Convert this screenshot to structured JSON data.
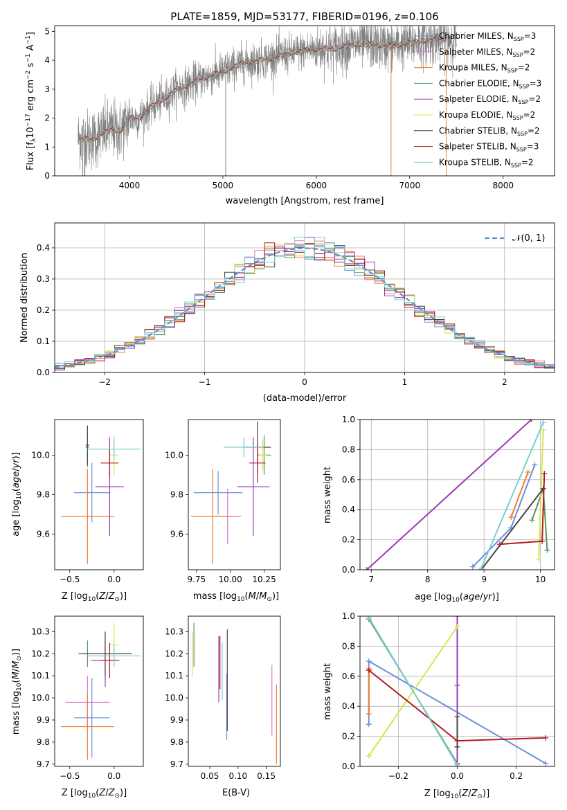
{
  "figure": {
    "title": "PLATE=1859, MJD=53177, FIBERID=0196, z=0.106"
  },
  "series_styles": [
    {
      "label": "Chabrier MILES, N$_{SSP}$=3",
      "label_main": "Chabrier MILES, N",
      "label_sub": "SSP",
      "label_tail": "=3",
      "color": "#6a8fdc"
    },
    {
      "label": "Salpeter MILES, N$_{SSP}$=2",
      "label_main": "Salpeter MILES, N",
      "label_sub": "SSP",
      "label_tail": "=2",
      "color": "#e276c7"
    },
    {
      "label": "Kroupa MILES, N$_{SSP}$=2",
      "label_main": "Kroupa MILES, N",
      "label_sub": "SSP",
      "label_tail": "=2",
      "color": "#f07e2a"
    },
    {
      "label": "Chabrier ELODIE, N$_{SSP}$=3",
      "label_main": "Chabrier ELODIE, N",
      "label_sub": "SSP",
      "label_tail": "=3",
      "color": "#5e8f5e"
    },
    {
      "label": "Salpeter ELODIE, N$_{SSP}$=2",
      "label_main": "Salpeter ELODIE, N",
      "label_sub": "SSP",
      "label_tail": "=2",
      "color": "#9b39b5"
    },
    {
      "label": "Kroupa ELODIE, N$_{SSP}$=2",
      "label_main": "Kroupa ELODIE, N",
      "label_sub": "SSP",
      "label_tail": "=2",
      "color": "#d7e64a"
    },
    {
      "label": "Chabrier STELIB, N$_{SSP}$=2",
      "label_main": "Chabrier STELIB, N",
      "label_sub": "SSP",
      "label_tail": "=2",
      "color": "#444444"
    },
    {
      "label": "Salpeter STELIB, N$_{SSP}$=3",
      "label_main": "Salpeter STELIB, N",
      "label_sub": "SSP",
      "label_tail": "=3",
      "color": "#b01c1c"
    },
    {
      "label": "Kroupa STELIB, N$_{SSP}$=2",
      "label_main": "Kroupa STELIB, N",
      "label_sub": "SSP",
      "label_tail": "=2",
      "color": "#78cfcf"
    }
  ],
  "chart_data": [
    {
      "id": "spectrum",
      "type": "line",
      "xlabel": "wavelength [Angstrom, rest frame]",
      "ylabel": "Flux [f$_\\lambda$10$^{-17}$ erg cm$^{-2}$ s$^{-1}$ A$^{-1}$]",
      "xlim": [
        3200,
        8550
      ],
      "ylim": [
        0,
        5.2
      ],
      "xticks": [
        4000,
        5000,
        6000,
        7000,
        8000
      ],
      "yticks": [
        0,
        1,
        2,
        3,
        4,
        5
      ],
      "legend_position": "top-right",
      "data_color": "#808080",
      "model_trend": {
        "x": [
          3450,
          3600,
          3700,
          3800,
          3900,
          4000,
          4100,
          4200,
          4300,
          4400,
          4500,
          4600,
          4800,
          5000,
          5200,
          5400,
          5600,
          5800,
          6000,
          6200,
          6400,
          6600,
          6800,
          7000,
          7200,
          7400
        ],
        "y": [
          1.3,
          1.25,
          1.45,
          1.6,
          1.55,
          2.0,
          2.0,
          2.3,
          2.55,
          2.7,
          3.0,
          3.1,
          3.4,
          3.6,
          3.9,
          4.0,
          4.15,
          4.3,
          4.4,
          4.4,
          4.55,
          4.55,
          4.5,
          4.6,
          4.7,
          4.75
        ]
      },
      "data_scatter_sigma": 0.55,
      "data_xrange": [
        3450,
        7500
      ]
    },
    {
      "id": "residual_histogram",
      "type": "step",
      "xlabel": "(data-model)/error",
      "ylabel": "Normed distribution",
      "xlim": [
        -2.5,
        2.5
      ],
      "ylim": [
        0,
        0.48
      ],
      "xticks": [
        -2,
        -1,
        0,
        1,
        2
      ],
      "yticks": [
        0.0,
        0.1,
        0.2,
        0.3,
        0.4
      ],
      "grid": true,
      "reference_curve": {
        "label": "$\\mathcal{N}(0,1)$",
        "label_text": "𝒩(0, 1)",
        "color": "#5b8fd6",
        "style": "dashed"
      },
      "bin_width": 0.1,
      "legend_position": "top-right"
    },
    {
      "id": "age_vs_Z",
      "type": "errorbar",
      "xlabel": "Z [log$_{10}$(Z/Z$_\\odot$)]",
      "ylabel": "age  [log$_{10}$(age/yr)]",
      "xlim": [
        -0.67,
        0.33
      ],
      "ylim": [
        9.42,
        10.18
      ],
      "xticks": [
        -0.5,
        0.0
      ],
      "yticks": [
        9.6,
        9.8,
        10.0
      ],
      "points": [
        {
          "series": 0,
          "x": -0.25,
          "y": 9.81,
          "xerr": 0.2,
          "yerr": 0.15
        },
        {
          "series": 2,
          "x": -0.3,
          "y": 9.69,
          "xerr": 0.3,
          "yerr": 0.24
        },
        {
          "series": 3,
          "x": -0.3,
          "y": 10.04,
          "xerr": 0.02,
          "yerr": 0.1
        },
        {
          "series": 4,
          "x": -0.05,
          "y": 9.84,
          "xerr": 0.16,
          "yerr": 0.25
        },
        {
          "series": 5,
          "x": 0.0,
          "y": 10.0,
          "xerr": 0.05,
          "yerr": 0.1
        },
        {
          "series": 6,
          "x": -0.3,
          "y": 10.05,
          "xerr": 0.02,
          "yerr": 0.1
        },
        {
          "series": 7,
          "x": -0.05,
          "y": 9.96,
          "xerr": 0.1,
          "yerr": 0.07
        },
        {
          "series": 8,
          "x": 0.0,
          "y": 10.03,
          "xerr": 0.3,
          "yerr": 0.05
        }
      ]
    },
    {
      "id": "age_vs_mass",
      "type": "errorbar",
      "xlabel": "mass [log$_{10}$(M/M$_\\odot$)]",
      "ylabel": "",
      "xlim": [
        9.69,
        10.37
      ],
      "ylim": [
        9.42,
        10.18
      ],
      "xticks": [
        9.75,
        10.0,
        10.25
      ],
      "yticks": [
        9.6,
        9.8,
        10.0
      ],
      "points": [
        {
          "series": 0,
          "x": 9.91,
          "y": 9.81,
          "xerr": 0.18,
          "yerr": 0.11
        },
        {
          "series": 1,
          "x": 9.98,
          "y": 9.69,
          "xerr": 0.1,
          "yerr": 0.14
        },
        {
          "series": 2,
          "x": 9.87,
          "y": 9.69,
          "xerr": 0.16,
          "yerr": 0.24
        },
        {
          "series": 3,
          "x": 10.25,
          "y": 10.0,
          "xerr": 0.05,
          "yerr": 0.1
        },
        {
          "series": 4,
          "x": 10.17,
          "y": 9.84,
          "xerr": 0.12,
          "yerr": 0.25
        },
        {
          "series": 5,
          "x": 10.24,
          "y": 10.0,
          "xerr": 0.03,
          "yerr": 0.08
        },
        {
          "series": 6,
          "x": 10.2,
          "y": 10.04,
          "xerr": 0.1,
          "yerr": 0.13
        },
        {
          "series": 7,
          "x": 10.2,
          "y": 9.96,
          "xerr": 0.06,
          "yerr": 0.1
        },
        {
          "series": 8,
          "x": 10.1,
          "y": 10.04,
          "xerr": 0.15,
          "yerr": 0.05
        }
      ]
    },
    {
      "id": "mass_weight_vs_age",
      "type": "line",
      "xlabel": "age  [log$_{10}$(age/yr)]",
      "ylabel": "mass weight",
      "xlim": [
        6.8,
        10.25
      ],
      "ylim": [
        0,
        1
      ],
      "xticks": [
        7,
        8,
        9,
        10
      ],
      "yticks": [
        0.0,
        0.2,
        0.4,
        0.6,
        0.8,
        1.0
      ],
      "grid": true,
      "series": [
        {
          "series": 0,
          "x": [
            8.8,
            9.48,
            9.9
          ],
          "y": [
            0.02,
            0.28,
            0.7
          ]
        },
        {
          "series": 2,
          "x": [
            9.48,
            9.78
          ],
          "y": [
            0.35,
            0.65
          ]
        },
        {
          "series": 3,
          "x": [
            9.85,
            10.05,
            10.12
          ],
          "y": [
            0.33,
            0.54,
            0.13
          ]
        },
        {
          "series": 4,
          "x": [
            6.92,
            9.84
          ],
          "y": [
            0.0,
            1.0
          ]
        },
        {
          "series": 5,
          "x": [
            9.97,
            10.05
          ],
          "y": [
            0.07,
            0.93
          ]
        },
        {
          "series": 6,
          "x": [
            8.95,
            10.05
          ],
          "y": [
            0.0,
            0.54
          ]
        },
        {
          "series": 7,
          "x": [
            9.28,
            10.03,
            10.07
          ],
          "y": [
            0.17,
            0.19,
            0.64
          ]
        },
        {
          "series": 8,
          "x": [
            8.95,
            10.05
          ],
          "y": [
            0.01,
            0.98
          ]
        }
      ]
    },
    {
      "id": "mass_vs_Z",
      "type": "errorbar",
      "xlabel": "Z [log$_{10}$(Z/Z$_\\odot$)]",
      "ylabel": "mass [log$_{10}$(M/M$_\\odot$)]",
      "xlim": [
        -0.67,
        0.33
      ],
      "ylim": [
        9.69,
        10.37
      ],
      "xticks": [
        -0.5,
        0.0
      ],
      "yticks": [
        9.7,
        9.8,
        9.9,
        10.0,
        10.1,
        10.2,
        10.3
      ],
      "points": [
        {
          "series": 0,
          "x": -0.25,
          "y": 9.91,
          "xerr": 0.2,
          "yerr": 0.18
        },
        {
          "series": 1,
          "x": -0.3,
          "y": 9.98,
          "xerr": 0.25,
          "yerr": 0.12
        },
        {
          "series": 2,
          "x": -0.3,
          "y": 9.87,
          "xerr": 0.3,
          "yerr": 0.15
        },
        {
          "series": 3,
          "x": -0.3,
          "y": 10.2,
          "xerr": 0.02,
          "yerr": 0.06
        },
        {
          "series": 4,
          "x": -0.1,
          "y": 10.17,
          "xerr": 0.16,
          "yerr": 0.12
        },
        {
          "series": 5,
          "x": 0.0,
          "y": 10.24,
          "xerr": 0.05,
          "yerr": 0.1
        },
        {
          "series": 6,
          "x": -0.1,
          "y": 10.2,
          "xerr": 0.3,
          "yerr": 0.1
        },
        {
          "series": 7,
          "x": -0.05,
          "y": 10.17,
          "xerr": 0.1,
          "yerr": 0.08
        },
        {
          "series": 8,
          "x": 0.0,
          "y": 10.19,
          "xerr": 0.3,
          "yerr": 0.05
        }
      ]
    },
    {
      "id": "mass_vs_ebv",
      "type": "errorbar",
      "xlabel": "E(B-V)",
      "ylabel": "",
      "xlim": [
        0.012,
        0.175
      ],
      "ylim": [
        9.69,
        10.37
      ],
      "xticks": [
        0.05,
        0.1,
        0.15
      ],
      "yticks": [
        9.7,
        9.8,
        9.9,
        10.0,
        10.1,
        10.2,
        10.3
      ],
      "points": [
        {
          "series": 0,
          "x": 0.08,
          "y": 9.96,
          "xerr": 0,
          "yerr": 0.15
        },
        {
          "series": 1,
          "x": 0.16,
          "y": 9.99,
          "xerr": 0,
          "yerr": 0.16
        },
        {
          "series": 2,
          "x": 0.168,
          "y": 9.88,
          "xerr": 0,
          "yerr": 0.18
        },
        {
          "series": 3,
          "x": 0.022,
          "y": 10.24,
          "xerr": 0,
          "yerr": 0.1
        },
        {
          "series": 4,
          "x": 0.066,
          "y": 10.13,
          "xerr": 0,
          "yerr": 0.15
        },
        {
          "series": 5,
          "x": 0.019,
          "y": 10.2,
          "xerr": 0,
          "yerr": 0.1
        },
        {
          "series": 6,
          "x": 0.081,
          "y": 10.08,
          "xerr": 0,
          "yerr": 0.23
        },
        {
          "series": 7,
          "x": 0.068,
          "y": 10.16,
          "xerr": 0,
          "yerr": 0.12
        },
        {
          "series": 8,
          "x": 0.072,
          "y": 10.12,
          "xerr": 0,
          "yerr": 0.13
        }
      ]
    },
    {
      "id": "mass_weight_vs_Z",
      "type": "line",
      "xlabel": "Z [log$_{10}$(Z/Z$_\\odot$)]",
      "ylabel": "mass weight",
      "xlim": [
        -0.33,
        0.33
      ],
      "ylim": [
        0,
        1
      ],
      "xticks": [
        -0.2,
        0.0,
        0.2
      ],
      "yticks": [
        0.0,
        0.2,
        0.4,
        0.6,
        0.8,
        1.0
      ],
      "grid": true,
      "series": [
        {
          "series": 0,
          "x": [
            -0.3,
            -0.3,
            0.3
          ],
          "y": [
            0.28,
            0.7,
            0.02
          ]
        },
        {
          "series": 2,
          "x": [
            -0.3,
            -0.3
          ],
          "y": [
            0.35,
            0.65
          ]
        },
        {
          "series": 3,
          "x": [
            -0.3,
            0.0
          ],
          "y": [
            0.98,
            0.02
          ]
        },
        {
          "series": 4,
          "x": [
            0.0,
            0.0,
            0.0
          ],
          "y": [
            1.0,
            0.54,
            0.0
          ]
        },
        {
          "series": 5,
          "x": [
            -0.3,
            0.0
          ],
          "y": [
            0.07,
            0.93
          ]
        },
        {
          "series": 6,
          "x": [
            0.0,
            0.0
          ],
          "y": [
            0.33,
            0.13
          ]
        },
        {
          "series": 7,
          "x": [
            -0.3,
            0.0,
            0.3
          ],
          "y": [
            0.64,
            0.17,
            0.19
          ]
        },
        {
          "series": 8,
          "x": [
            -0.3,
            0.0
          ],
          "y": [
            0.99,
            0.01
          ]
        }
      ]
    }
  ]
}
